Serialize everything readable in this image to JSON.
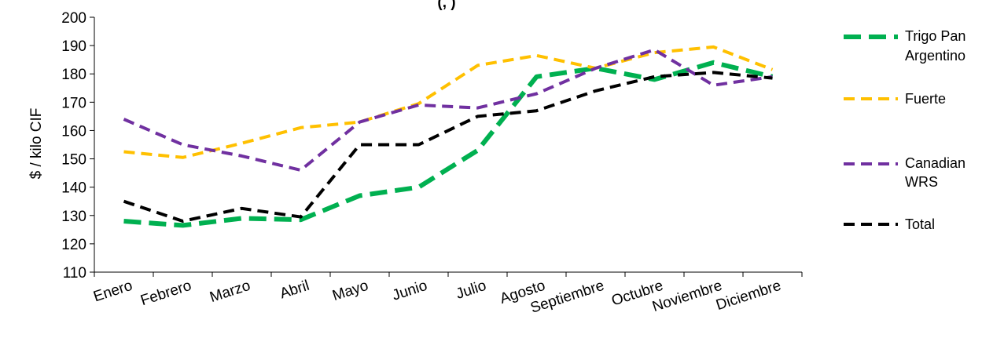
{
  "chart_data": {
    "type": "line",
    "title": "",
    "title_visible_fragment": "(, )",
    "ylabel": "$ / kilo CIF",
    "xlabel": "",
    "ylim": [
      110,
      200
    ],
    "yticks": [
      110,
      120,
      130,
      140,
      150,
      160,
      170,
      180,
      190,
      200
    ],
    "categories": [
      "Enero",
      "Febrero",
      "Marzo",
      "Abril",
      "Mayo",
      "Junio",
      "Julio",
      "Agosto",
      "Septiembre",
      "Octubre",
      "Noviembre",
      "Diciembre"
    ],
    "grid": false,
    "legend_position": "right",
    "series": [
      {
        "name": "Trigo Pan Argentino",
        "legend_lines": [
          "Trigo Pan",
          "Argentino"
        ],
        "color": "#00B050",
        "values": [
          128,
          126.5,
          129,
          128.5,
          137,
          140,
          153,
          179,
          182,
          178,
          184,
          179
        ]
      },
      {
        "name": "Fuerte",
        "legend_lines": [
          "Fuerte"
        ],
        "color": "#FFC000",
        "values": [
          152.5,
          150.5,
          155.5,
          161,
          163,
          169.5,
          183,
          186.5,
          182,
          187.5,
          189.5,
          181.5
        ]
      },
      {
        "name": "Canadian WRS",
        "legend_lines": [
          "Canadian",
          "WRS"
        ],
        "color": "#7030A0",
        "values": [
          164,
          155,
          151,
          146,
          163,
          169,
          168,
          173,
          182,
          188.5,
          176,
          179
        ]
      },
      {
        "name": "Total",
        "legend_lines": [
          "Total"
        ],
        "color": "#000000",
        "values": [
          135,
          128,
          132.5,
          129.5,
          155,
          155,
          165,
          167,
          174,
          179,
          180.5,
          178.5
        ]
      }
    ]
  }
}
